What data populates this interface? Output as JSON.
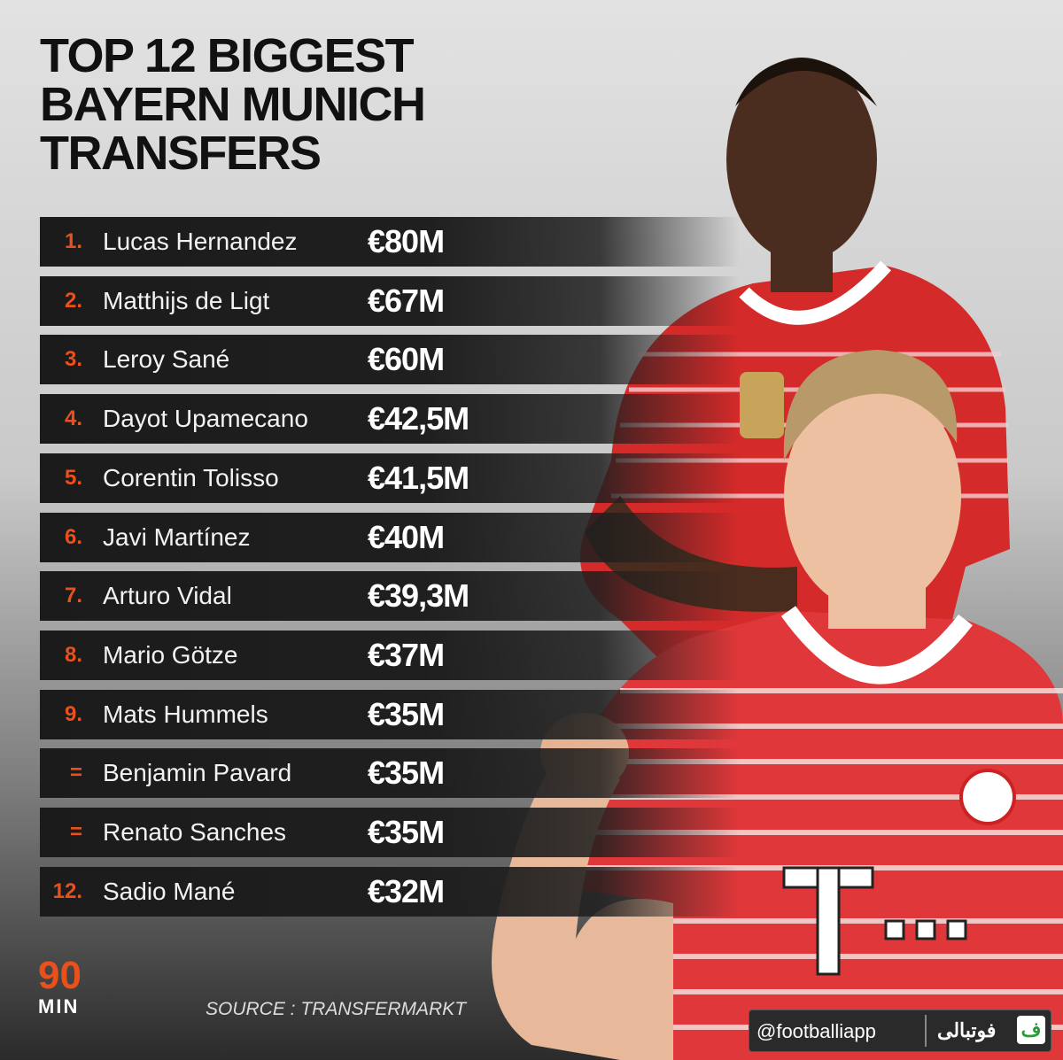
{
  "header": {
    "title": [
      "TOP 12 BIGGEST",
      "BAYERN MUNICH",
      "TRANSFERS"
    ]
  },
  "rows": [
    {
      "rank": "1.",
      "name": "Lucas Hernandez",
      "fee": "€80M"
    },
    {
      "rank": "2.",
      "name": "Matthijs de Ligt",
      "fee": "€67M"
    },
    {
      "rank": "3.",
      "name": "Leroy Sané",
      "fee": "€60M"
    },
    {
      "rank": "4.",
      "name": "Dayot Upamecano",
      "fee": "€42,5M"
    },
    {
      "rank": "5.",
      "name": "Corentin Tolisso",
      "fee": "€41,5M"
    },
    {
      "rank": "6.",
      "name": "Javi Martínez",
      "fee": "€40M"
    },
    {
      "rank": "7.",
      "name": "Arturo Vidal",
      "fee": "€39,3M"
    },
    {
      "rank": "8.",
      "name": "Mario Götze",
      "fee": "€37M"
    },
    {
      "rank": "9.",
      "name": "Mats Hummels",
      "fee": "€35M"
    },
    {
      "rank": "=",
      "name": "Benjamin Pavard",
      "fee": "€35M"
    },
    {
      "rank": "=",
      "name": "Renato Sanches",
      "fee": "€35M"
    },
    {
      "rank": "12.",
      "name": "Sadio Mané",
      "fee": "€32M"
    }
  ],
  "logo": {
    "top": "90",
    "bottom": "MIN"
  },
  "source": "SOURCE : TRANSFERMARKT",
  "watermark": {
    "handle": "@footballiapp",
    "brand": "فوتبالی",
    "icon": "ف"
  }
}
